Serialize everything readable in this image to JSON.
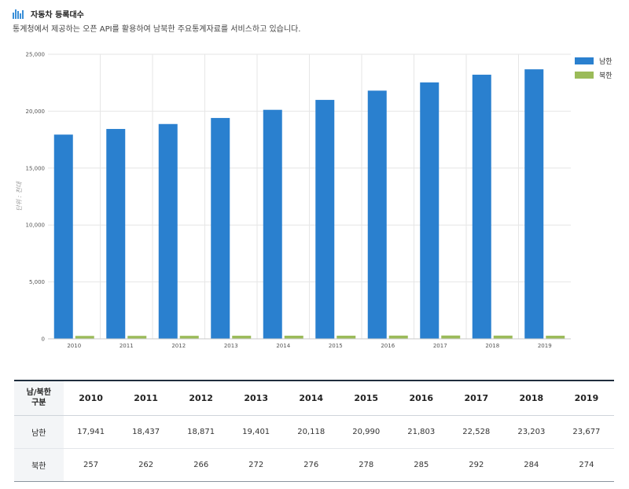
{
  "header": {
    "title": "자동차 등록대수",
    "description": "통계청에서 제공하는 오픈 API를 활용하여 남북한 주요통계자료를 서비스하고 있습니다."
  },
  "colors": {
    "south": "#2a80cf",
    "north": "#9bbb59",
    "grid": "#e6e6e6",
    "axis": "#c8c8c8"
  },
  "chart_data": {
    "type": "bar",
    "title": "",
    "ylabel": "단위 : 천대",
    "xlabel": "",
    "ylim": [
      0,
      25000
    ],
    "yticks": [
      0,
      5000,
      10000,
      15000,
      20000,
      25000
    ],
    "ytick_labels": [
      "0",
      "5,000",
      "10,000",
      "15,000",
      "20,000",
      "25,000"
    ],
    "categories": [
      "2010",
      "2011",
      "2012",
      "2013",
      "2014",
      "2015",
      "2016",
      "2017",
      "2018",
      "2019"
    ],
    "series": [
      {
        "name": "남한",
        "values": [
          17941,
          18437,
          18871,
          19401,
          20118,
          20990,
          21803,
          22528,
          23203,
          23677
        ]
      },
      {
        "name": "북한",
        "values": [
          257,
          262,
          266,
          272,
          276,
          278,
          285,
          292,
          284,
          274
        ]
      }
    ],
    "legend": "top-right",
    "grid": true
  },
  "table": {
    "stub_header": [
      "남/북한",
      "구분"
    ],
    "columns": [
      "2010",
      "2011",
      "2012",
      "2013",
      "2014",
      "2015",
      "2016",
      "2017",
      "2018",
      "2019"
    ],
    "rows": [
      {
        "label": "남한",
        "cells": [
          "17,941",
          "18,437",
          "18,871",
          "19,401",
          "20,118",
          "20,990",
          "21,803",
          "22,528",
          "23,203",
          "23,677"
        ]
      },
      {
        "label": "북한",
        "cells": [
          "257",
          "262",
          "266",
          "272",
          "276",
          "278",
          "285",
          "292",
          "284",
          "274"
        ]
      }
    ]
  }
}
